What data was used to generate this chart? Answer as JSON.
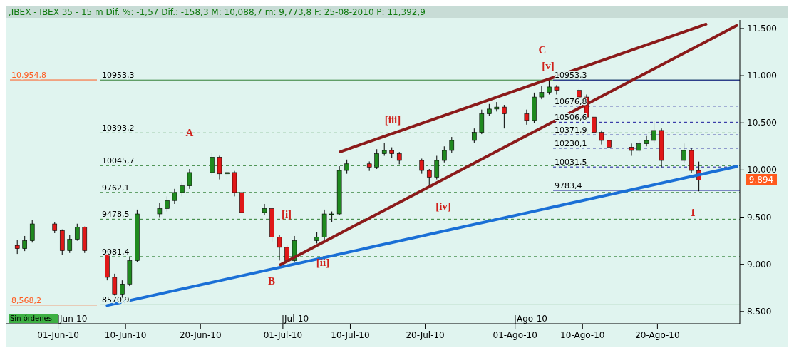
{
  "chart_data": {
    "type": "candlestick",
    "title": ",IBEX - IBEX 35 -  15 m Dif. %: -1,57 Dif.: -158,3 M: 10,088,7 m: 9,773,8 F: 25-08-2010 P: 11,392,9",
    "x": [
      "2010-05-26T13:00",
      "2010-05-27T13:00",
      "2010-05-28T13:00",
      "2010-05-31T13:00",
      "2010-06-01T13:00",
      "2010-06-02T13:00",
      "2010-06-03T13:00",
      "2010-06-04T13:00",
      "2010-06-07T13:00",
      "2010-06-08T13:00",
      "2010-06-09T13:00",
      "2010-06-10T13:00",
      "2010-06-11T13:00",
      "2010-06-14T13:00",
      "2010-06-15T13:00",
      "2010-06-16T13:00",
      "2010-06-17T13:00",
      "2010-06-18T13:00",
      "2010-06-21T13:00",
      "2010-06-22T13:00",
      "2010-06-23T13:00",
      "2010-06-24T13:00",
      "2010-06-25T13:00",
      "2010-06-28T13:00",
      "2010-06-29T13:00",
      "2010-06-30T13:00",
      "2010-07-01T13:00",
      "2010-07-02T13:00",
      "2010-07-05T13:00",
      "2010-07-06T13:00",
      "2010-07-07T13:00",
      "2010-07-08T13:00",
      "2010-07-09T13:00",
      "2010-07-12T13:00",
      "2010-07-13T13:00",
      "2010-07-14T13:00",
      "2010-07-15T13:00",
      "2010-07-16T13:00",
      "2010-07-19T13:00",
      "2010-07-20T13:00",
      "2010-07-21T13:00",
      "2010-07-22T13:00",
      "2010-07-23T13:00",
      "2010-07-26T13:00",
      "2010-07-27T13:00",
      "2010-07-28T13:00",
      "2010-07-29T13:00",
      "2010-07-30T13:00",
      "2010-08-02T13:00",
      "2010-08-03T13:00",
      "2010-08-04T13:00",
      "2010-08-05T13:00",
      "2010-08-06T13:00",
      "2010-08-09T13:00",
      "2010-08-10T13:00",
      "2010-08-11T13:00",
      "2010-08-12T13:00",
      "2010-08-13T13:00",
      "2010-08-16T13:00",
      "2010-08-17T13:00",
      "2010-08-18T13:00",
      "2010-08-19T13:00",
      "2010-08-20T13:00",
      "2010-08-23T13:00",
      "2010-08-24T13:00",
      "2010-08-25T13:00"
    ],
    "ohlc": [
      [
        9200,
        9260,
        9110,
        9166
      ],
      [
        9166,
        9300,
        9140,
        9250
      ],
      [
        9250,
        9470,
        9230,
        9428
      ],
      [
        9428,
        9450,
        9330,
        9357
      ],
      [
        9357,
        9370,
        9100,
        9145
      ],
      [
        9145,
        9310,
        9120,
        9265
      ],
      [
        9265,
        9430,
        9250,
        9393
      ],
      [
        9393,
        9400,
        9120,
        9145
      ],
      [
        9145,
        9160,
        8830,
        8862
      ],
      [
        8862,
        8900,
        8571,
        8685
      ],
      [
        8685,
        8830,
        8640,
        8791
      ],
      [
        8791,
        9080,
        8770,
        9039
      ],
      [
        9039,
        9580,
        9020,
        9534
      ],
      [
        9534,
        9650,
        9500,
        9591
      ],
      [
        9591,
        9720,
        9560,
        9676
      ],
      [
        9676,
        9800,
        9640,
        9761
      ],
      [
        9761,
        9870,
        9720,
        9832
      ],
      [
        9832,
        10010,
        9800,
        9973
      ],
      [
        9973,
        10180,
        9950,
        10136
      ],
      [
        10136,
        10150,
        9900,
        9959
      ],
      [
        9959,
        10020,
        9900,
        9973
      ],
      [
        9973,
        9990,
        9720,
        9761
      ],
      [
        9761,
        9790,
        9500,
        9549
      ],
      [
        9549,
        9640,
        9520,
        9591
      ],
      [
        9591,
        9600,
        9240,
        9287
      ],
      [
        9287,
        9310,
        9040,
        9180
      ],
      [
        9180,
        9200,
        8990,
        9039
      ],
      [
        9039,
        9300,
        9020,
        9251
      ],
      [
        9251,
        9340,
        9220,
        9287
      ],
      [
        9287,
        9580,
        9260,
        9534
      ],
      [
        9534,
        9560,
        9450,
        9534
      ],
      [
        9534,
        10040,
        9520,
        9995
      ],
      [
        9995,
        10110,
        9960,
        10065
      ],
      [
        10065,
        10090,
        9990,
        10030
      ],
      [
        10030,
        10220,
        10010,
        10172
      ],
      [
        10172,
        10290,
        10150,
        10207
      ],
      [
        10207,
        10240,
        10130,
        10172
      ],
      [
        10172,
        10190,
        10060,
        10101
      ],
      [
        10101,
        10120,
        9960,
        9995
      ],
      [
        9995,
        10010,
        9830,
        9924
      ],
      [
        9924,
        10150,
        9900,
        10101
      ],
      [
        10101,
        10250,
        10080,
        10207
      ],
      [
        10207,
        10350,
        10180,
        10313
      ],
      [
        10313,
        10440,
        10290,
        10398
      ],
      [
        10398,
        10640,
        10380,
        10596
      ],
      [
        10596,
        10700,
        10570,
        10646
      ],
      [
        10646,
        10720,
        10620,
        10667
      ],
      [
        10667,
        10690,
        10440,
        10596
      ],
      [
        10596,
        10640,
        10480,
        10526
      ],
      [
        10526,
        10820,
        10500,
        10773
      ],
      [
        10773,
        10890,
        10750,
        10823
      ],
      [
        10823,
        10953.3,
        10800,
        10880
      ],
      [
        10880,
        10900,
        10800,
        10844
      ],
      [
        10844,
        10860,
        10740,
        10773
      ],
      [
        10773,
        10800,
        10520,
        10561
      ],
      [
        10561,
        10580,
        10350,
        10398
      ],
      [
        10398,
        10420,
        10270,
        10313
      ],
      [
        10313,
        10340,
        10200,
        10242
      ],
      [
        10242,
        10280,
        10150,
        10207
      ],
      [
        10207,
        10320,
        10190,
        10278
      ],
      [
        10278,
        10360,
        10250,
        10313
      ],
      [
        10313,
        10520,
        10290,
        10419
      ],
      [
        10419,
        10440,
        10030,
        10101
      ],
      [
        10101,
        10280,
        10080,
        10207
      ],
      [
        10207,
        10230,
        9970,
        9995
      ],
      [
        9995,
        10088.7,
        9773.8,
        9894
      ]
    ],
    "xlim": [
      "2010-05-25",
      "2010-08-31"
    ],
    "xticks": [
      {
        "value": "2010-06-01",
        "label": "01-Jun-10"
      },
      {
        "value": "2010-06-10",
        "label": "10-Jun-10"
      },
      {
        "value": "2010-06-20",
        "label": "20-Jun-10"
      },
      {
        "value": "2010-07-01",
        "label": "01-Jul-10"
      },
      {
        "value": "2010-07-10",
        "label": "10-Jul-10"
      },
      {
        "value": "2010-07-20",
        "label": "20-Jul-10"
      },
      {
        "value": "2010-08-01",
        "label": "01-Ago-10"
      },
      {
        "value": "2010-08-10",
        "label": "10-Ago-10"
      },
      {
        "value": "2010-08-20",
        "label": "20-Ago-10"
      }
    ],
    "ylim": [
      8370,
      11590
    ],
    "yticks": [
      {
        "value": 8500,
        "label": "8.500"
      },
      {
        "value": 9000,
        "label": "9.000"
      },
      {
        "value": 9500,
        "label": "9.500"
      },
      {
        "value": 10000,
        "label": "10.000"
      },
      {
        "value": 10500,
        "label": "10.500"
      },
      {
        "value": 11000,
        "label": "11.000"
      },
      {
        "value": 11500,
        "label": "11.500"
      }
    ],
    "series": [
      {
        "type": "line",
        "color": "#1a6fd6",
        "x": [
          "2010-06-07T13:00",
          "2010-08-30T14:00"
        ],
        "values": [
          8564,
          10037
        ]
      },
      {
        "type": "line",
        "color": "#8b1a1a",
        "x": [
          "2010-07-08T16:00",
          "2010-08-26T11:30"
        ],
        "values": [
          10193,
          11545
        ]
      },
      {
        "type": "line",
        "color": "#8b1a1a",
        "x": [
          "2010-06-30T16:00",
          "2010-08-30T14:00"
        ],
        "values": [
          8996,
          11531
        ]
      }
    ],
    "ref_lines": [
      {
        "axis": "y",
        "value": 10953.3,
        "label": "10953,3",
        "color": "#2e7d32",
        "line_style": "solid"
      },
      {
        "axis": "y",
        "value": 10393.2,
        "label": "10393,2",
        "color": "#2e7d32",
        "line_style": "dashed"
      },
      {
        "axis": "y",
        "value": 10045.7,
        "label": "10045,7",
        "color": "#2e7d32",
        "line_style": "dashed"
      },
      {
        "axis": "y",
        "value": 9762.1,
        "label": "9762,1",
        "color": "#2e7d32",
        "line_style": "dashed"
      },
      {
        "axis": "y",
        "value": 9478.5,
        "label": "9478,5",
        "color": "#2e7d32",
        "line_style": "dashed"
      },
      {
        "axis": "y",
        "value": 9081.4,
        "label": "9081,4",
        "color": "#2e7d32",
        "line_style": "dashed"
      },
      {
        "axis": "y",
        "value": 8570.9,
        "label": "8570,9",
        "color": "#2e7d32",
        "line_style": "solid"
      },
      {
        "axis": "y",
        "value": 10953.3,
        "label": "10953,3",
        "color": "#1a1a9a",
        "line_style": "solid"
      },
      {
        "axis": "y",
        "value": 10676.8,
        "label": "10676,8",
        "color": "#1a1a9a",
        "line_style": "dashed"
      },
      {
        "axis": "y",
        "value": 10506.6,
        "label": "10506,6",
        "color": "#1a1a9a",
        "line_style": "dashed"
      },
      {
        "axis": "y",
        "value": 10371.9,
        "label": "10371,9",
        "color": "#1a1a9a",
        "line_style": "dashed"
      },
      {
        "axis": "y",
        "value": 10230.1,
        "label": "10230,1",
        "color": "#1a1a9a",
        "line_style": "dashed"
      },
      {
        "axis": "y",
        "value": 10031.5,
        "label": "10031,5",
        "color": "#1a1a9a",
        "line_style": "dashed"
      },
      {
        "axis": "y",
        "value": 9783.4,
        "label": "9783,4",
        "color": "#1a1a9a",
        "line_style": "solid"
      },
      {
        "axis": "y",
        "value": 10954.8,
        "label": "10,954,8",
        "color": "#ff5a1e",
        "line_style": "solid"
      },
      {
        "axis": "y",
        "value": 8568.2,
        "label": "8,568,2",
        "color": "#ff5a1e",
        "line_style": "solid"
      }
    ],
    "annotations": [
      "A",
      "B",
      "C",
      "1",
      "[i]",
      "[ii]",
      "[iii]",
      "[iv]",
      "[v]",
      "Jun-10",
      "Jul-10",
      "Ago-10",
      "9.894",
      "Sin órdenes"
    ]
  }
}
